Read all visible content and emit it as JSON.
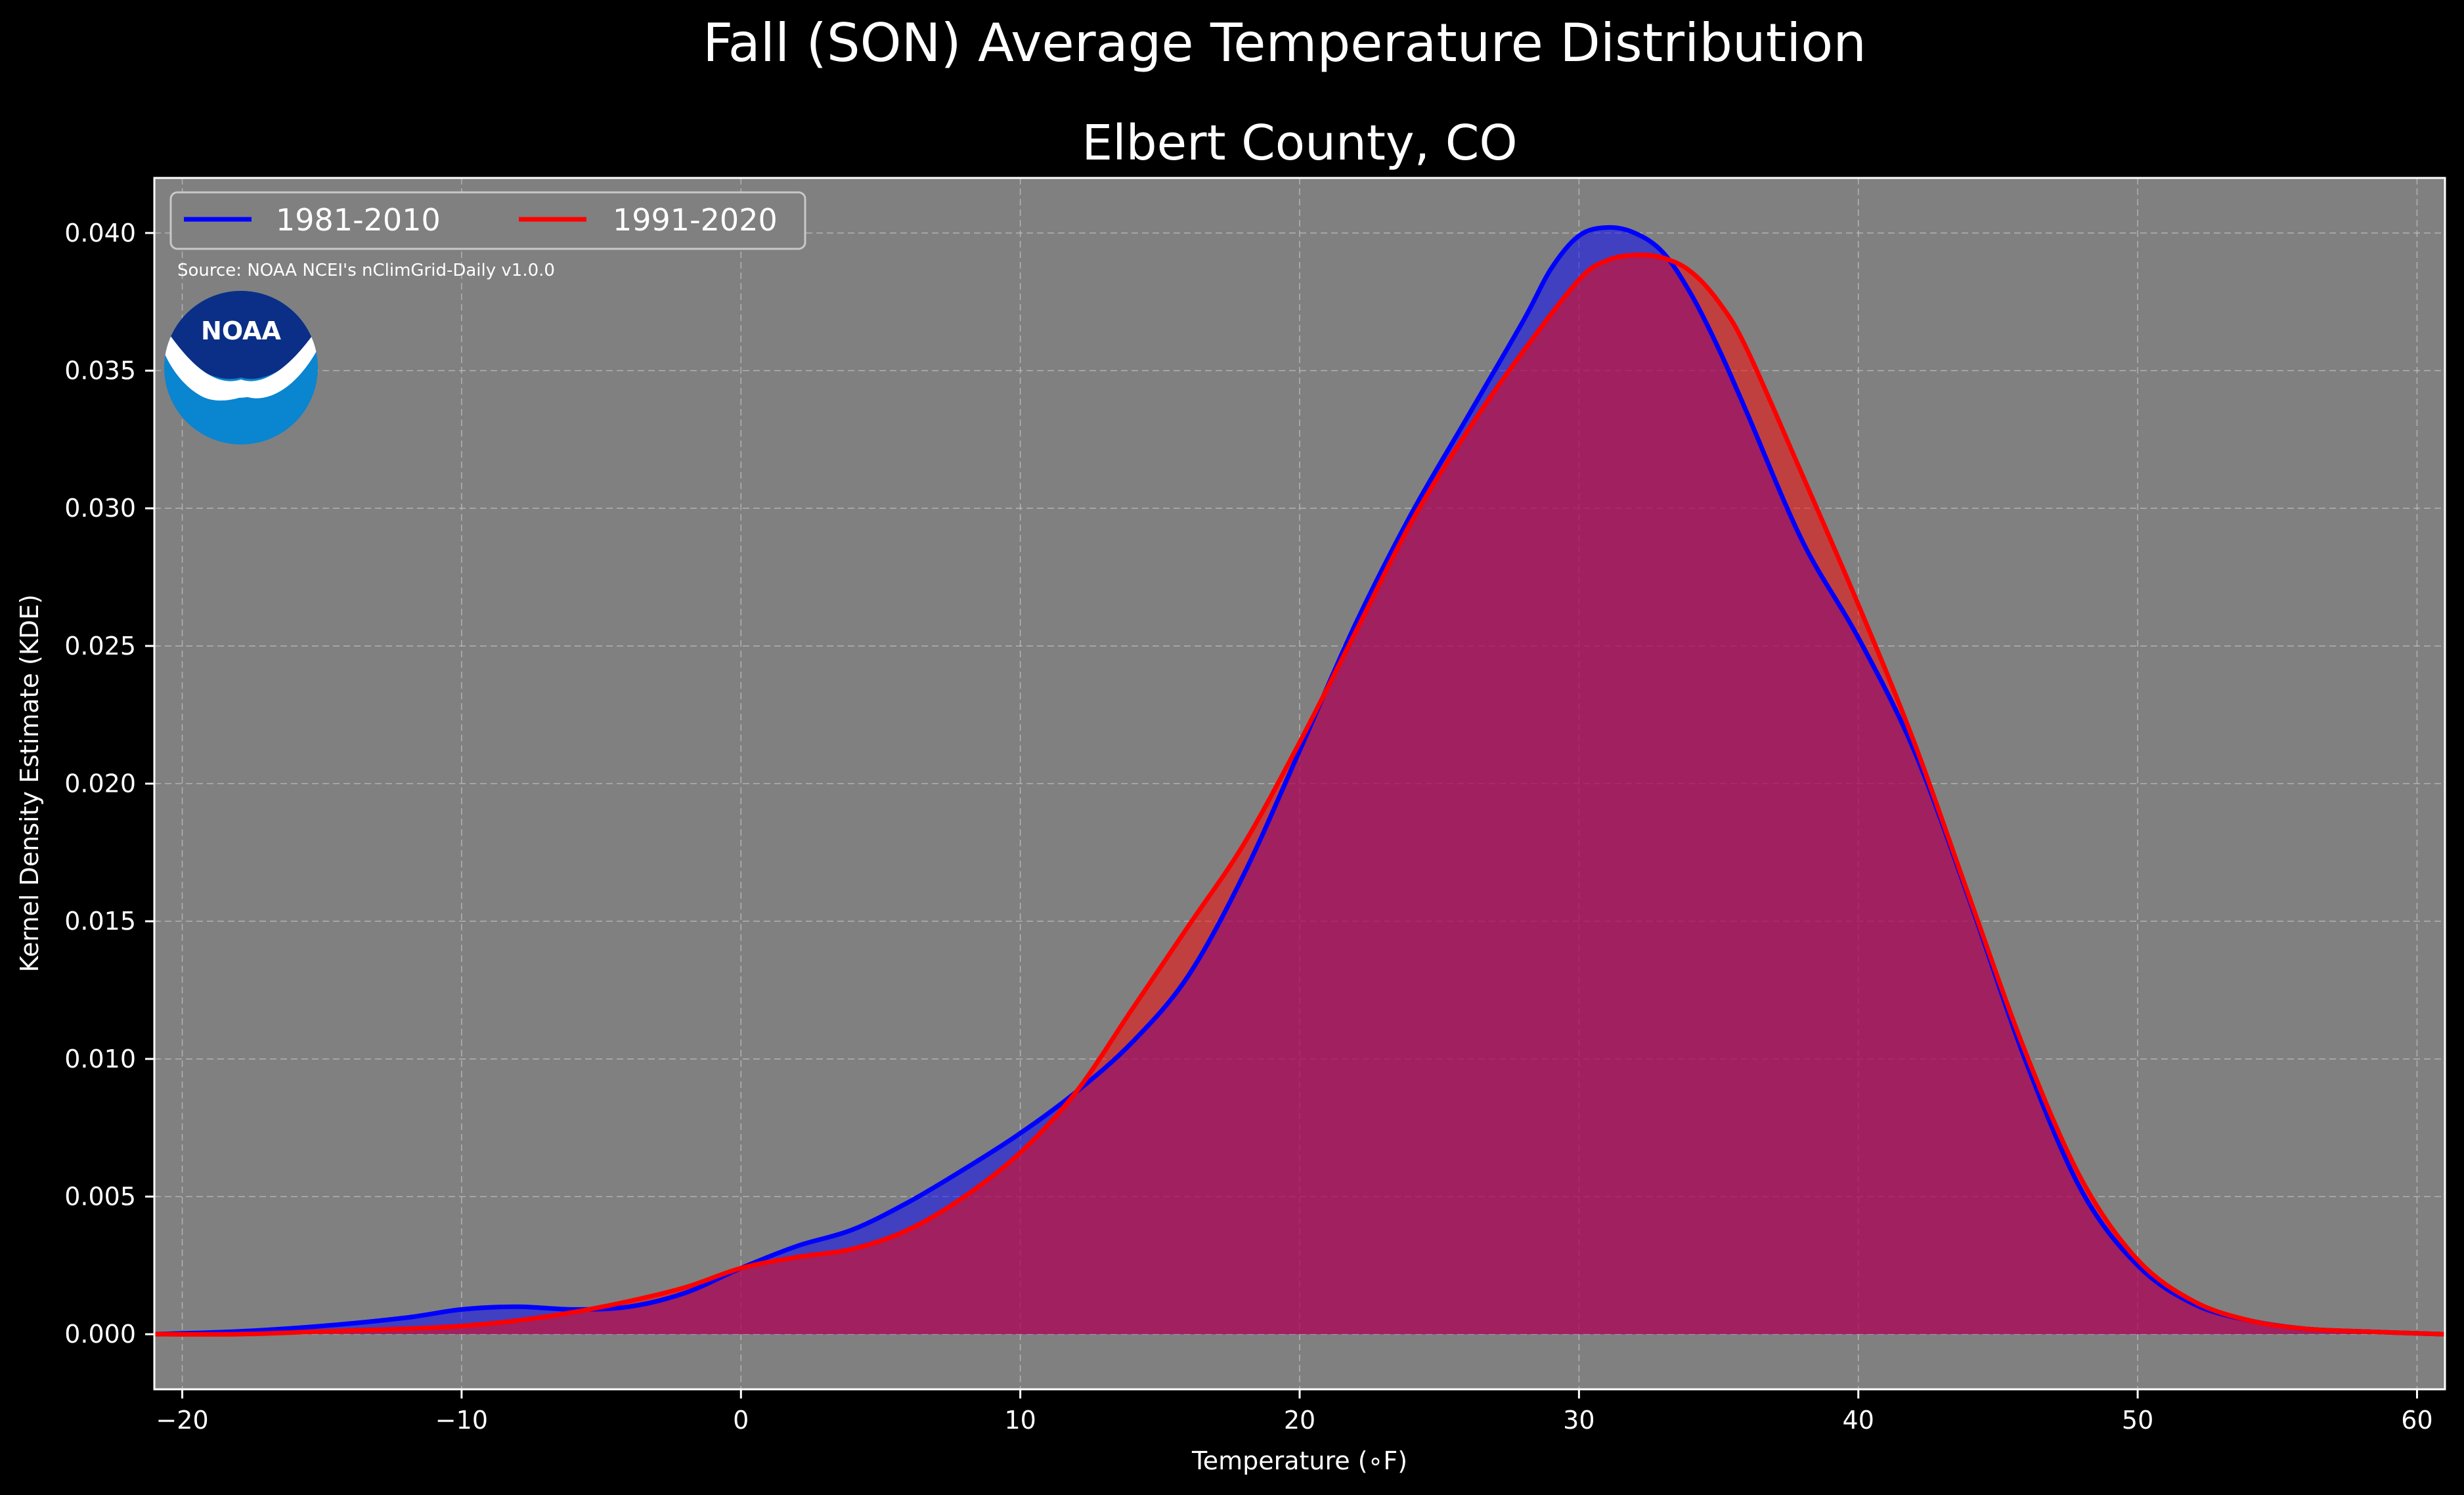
{
  "chart_data": {
    "type": "area",
    "suptitle": "Fall (SON) Average Temperature Distribution",
    "title": "Elbert County, CO",
    "xlabel": "Temperature (∘F)",
    "ylabel": "Kernel Density Estimate (KDE)",
    "xlim": [
      -21,
      61
    ],
    "ylim": [
      -0.002,
      0.042
    ],
    "xticks": [
      -20,
      -10,
      0,
      10,
      20,
      30,
      40,
      50,
      60
    ],
    "xtick_labels": [
      "−20",
      "−10",
      "0",
      "10",
      "20",
      "30",
      "40",
      "50",
      "60"
    ],
    "yticks": [
      0.0,
      0.005,
      0.01,
      0.015,
      0.02,
      0.025,
      0.03,
      0.035,
      0.04
    ],
    "ytick_labels": [
      "0.000",
      "0.005",
      "0.010",
      "0.015",
      "0.020",
      "0.025",
      "0.030",
      "0.035",
      "0.040"
    ],
    "grid": true,
    "legend_position": "top-left",
    "background_color": "#808080",
    "series": [
      {
        "name": "1981-2010",
        "color": "#0000ff",
        "x": [
          -21,
          -18,
          -15,
          -12,
          -10,
          -8,
          -6,
          -4,
          -2,
          0,
          2,
          4,
          6,
          8,
          10,
          12,
          14,
          16,
          18,
          20,
          22,
          24,
          26,
          28,
          29,
          30,
          31,
          32,
          33,
          34,
          35,
          36,
          38,
          40,
          42,
          44,
          46,
          48,
          50,
          52,
          54,
          56,
          58,
          61
        ],
        "y": [
          0.0,
          0.0001,
          0.0003,
          0.0006,
          0.0009,
          0.001,
          0.0009,
          0.001,
          0.0015,
          0.0024,
          0.0032,
          0.0038,
          0.0048,
          0.006,
          0.0073,
          0.0088,
          0.0106,
          0.013,
          0.0167,
          0.0212,
          0.0258,
          0.0298,
          0.0333,
          0.0368,
          0.0387,
          0.0399,
          0.0402,
          0.04,
          0.0393,
          0.0378,
          0.0358,
          0.0335,
          0.0288,
          0.0253,
          0.0212,
          0.0157,
          0.0099,
          0.0052,
          0.0025,
          0.0011,
          0.0005,
          0.0002,
          0.0001,
          0.0
        ]
      },
      {
        "name": "1991-2020",
        "color": "#ff0000",
        "x": [
          -21,
          -18,
          -15,
          -12,
          -10,
          -8,
          -6,
          -4,
          -2,
          0,
          2,
          4,
          6,
          8,
          10,
          12,
          14,
          16,
          18,
          20,
          22,
          24,
          26,
          28,
          30,
          31,
          32,
          33,
          34,
          35,
          36,
          38,
          40,
          42,
          44,
          46,
          48,
          50,
          52,
          54,
          56,
          58,
          61
        ],
        "y": [
          0.0,
          0.0,
          0.0001,
          0.0002,
          0.0003,
          0.0005,
          0.0008,
          0.0012,
          0.0017,
          0.0024,
          0.0028,
          0.0031,
          0.0038,
          0.005,
          0.0066,
          0.0088,
          0.0118,
          0.0148,
          0.0178,
          0.0215,
          0.0255,
          0.0295,
          0.0328,
          0.0357,
          0.0383,
          0.039,
          0.0392,
          0.0391,
          0.0386,
          0.0375,
          0.0358,
          0.0312,
          0.0265,
          0.0215,
          0.0158,
          0.0102,
          0.0056,
          0.0027,
          0.0012,
          0.0005,
          0.0002,
          0.0001,
          0.0
        ]
      }
    ],
    "annotations": [
      "Source: NOAA NCEI's nClimGrid-Daily v1.0.0"
    ],
    "logo_text": "NOAA"
  }
}
